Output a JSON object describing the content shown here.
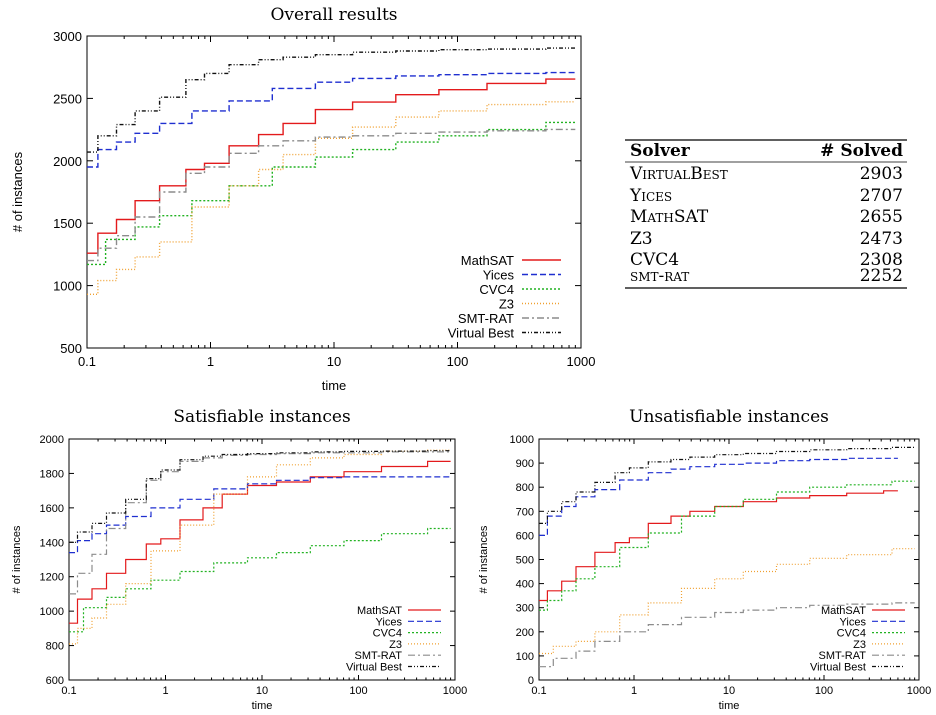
{
  "colors": {
    "MathSAT": "#e31a1c",
    "Yices": "#1f2fd0",
    "CVC4": "#22b222",
    "Z3": "#f0a030",
    "SMT-RAT": "#8c8c8c",
    "Virtual Best": "#111111"
  },
  "chart_data": [
    {
      "type": "line",
      "title": "Overall results",
      "xlabel": "time",
      "ylabel": "# of instances",
      "xscale": "log",
      "xlim": [
        0.1,
        1000
      ],
      "ylim": [
        500,
        3000
      ],
      "xticks": [
        "0.1",
        "1",
        "10",
        "100",
        "1000"
      ],
      "yticks": [
        500,
        1000,
        1500,
        2000,
        2500,
        3000
      ],
      "legend": "bottom-right",
      "series": [
        {
          "name": "MathSAT",
          "x": [
            0.1,
            0.15,
            0.2,
            0.3,
            0.5,
            0.8,
            1,
            2,
            3,
            5,
            10,
            20,
            50,
            100,
            300,
            900
          ],
          "y": [
            1260,
            1420,
            1530,
            1680,
            1800,
            1930,
            1980,
            2120,
            2210,
            2300,
            2410,
            2470,
            2530,
            2570,
            2620,
            2655
          ]
        },
        {
          "name": "Yices",
          "x": [
            0.1,
            0.15,
            0.2,
            0.3,
            0.5,
            1,
            2,
            5,
            10,
            20,
            50,
            100,
            300,
            900
          ],
          "y": [
            1950,
            2090,
            2150,
            2220,
            2300,
            2400,
            2480,
            2580,
            2630,
            2660,
            2680,
            2690,
            2700,
            2707
          ]
        },
        {
          "name": "CVC4",
          "x": [
            0.1,
            0.2,
            0.3,
            0.5,
            1,
            2,
            5,
            10,
            20,
            50,
            100,
            300,
            900
          ],
          "y": [
            1170,
            1370,
            1470,
            1560,
            1680,
            1800,
            1950,
            2030,
            2090,
            2150,
            2200,
            2250,
            2308
          ]
        },
        {
          "name": "Z3",
          "x": [
            0.1,
            0.15,
            0.2,
            0.3,
            0.5,
            1,
            2,
            3,
            5,
            10,
            20,
            50,
            100,
            300,
            900
          ],
          "y": [
            930,
            1040,
            1130,
            1230,
            1350,
            1630,
            1800,
            1930,
            2050,
            2180,
            2270,
            2350,
            2400,
            2450,
            2473
          ]
        },
        {
          "name": "SMT-RAT",
          "x": [
            0.1,
            0.15,
            0.2,
            0.3,
            0.5,
            0.8,
            1,
            2,
            3,
            5,
            10,
            20,
            50,
            100,
            300,
            900
          ],
          "y": [
            1200,
            1300,
            1400,
            1550,
            1750,
            1900,
            1950,
            2060,
            2120,
            2160,
            2190,
            2200,
            2220,
            2230,
            2240,
            2252
          ]
        },
        {
          "name": "Virtual Best",
          "x": [
            0.1,
            0.15,
            0.2,
            0.3,
            0.5,
            0.8,
            1,
            2,
            3,
            5,
            10,
            20,
            50,
            100,
            300,
            900
          ],
          "y": [
            2070,
            2200,
            2290,
            2400,
            2510,
            2650,
            2700,
            2770,
            2810,
            2830,
            2850,
            2870,
            2880,
            2890,
            2895,
            2903
          ]
        }
      ]
    },
    {
      "type": "line",
      "title": "Satisfiable instances",
      "xlabel": "time",
      "ylabel": "# of instances",
      "xscale": "log",
      "xlim": [
        0.1,
        1000
      ],
      "ylim": [
        600,
        2000
      ],
      "xticks": [
        "0.1",
        "1",
        "10",
        "100",
        "1000"
      ],
      "yticks": [
        600,
        800,
        1000,
        1200,
        1400,
        1600,
        1800,
        2000
      ],
      "legend": "bottom-right",
      "series": [
        {
          "name": "MathSAT",
          "x": [
            0.1,
            0.15,
            0.2,
            0.3,
            0.5,
            0.8,
            1,
            2,
            3,
            5,
            10,
            20,
            50,
            100,
            300,
            900
          ],
          "y": [
            930,
            1070,
            1130,
            1220,
            1300,
            1390,
            1420,
            1530,
            1600,
            1680,
            1730,
            1750,
            1780,
            1810,
            1840,
            1870
          ]
        },
        {
          "name": "Yices",
          "x": [
            0.1,
            0.15,
            0.2,
            0.3,
            0.5,
            1,
            2,
            5,
            10,
            20,
            50,
            100,
            300,
            900
          ],
          "y": [
            1340,
            1410,
            1450,
            1500,
            1550,
            1600,
            1650,
            1710,
            1740,
            1760,
            1775,
            1780,
            1780,
            1780
          ]
        },
        {
          "name": "CVC4",
          "x": [
            0.1,
            0.2,
            0.3,
            0.5,
            1,
            2,
            5,
            10,
            20,
            50,
            100,
            300,
            900
          ],
          "y": [
            880,
            1020,
            1080,
            1130,
            1180,
            1230,
            1280,
            1310,
            1340,
            1380,
            1410,
            1450,
            1480
          ]
        },
        {
          "name": "Z3",
          "x": [
            0.1,
            0.15,
            0.2,
            0.3,
            0.5,
            1,
            2,
            5,
            10,
            20,
            50,
            100,
            300,
            900
          ],
          "y": [
            810,
            900,
            960,
            1040,
            1160,
            1350,
            1500,
            1680,
            1780,
            1850,
            1890,
            1910,
            1930,
            1935
          ]
        },
        {
          "name": "SMT-RAT",
          "x": [
            0.1,
            0.15,
            0.2,
            0.3,
            0.5,
            0.8,
            1,
            2,
            3,
            5,
            10,
            20,
            50,
            100,
            300,
            900
          ],
          "y": [
            1100,
            1220,
            1330,
            1480,
            1630,
            1760,
            1810,
            1870,
            1890,
            1905,
            1910,
            1915,
            1920,
            1920,
            1925,
            1925
          ]
        },
        {
          "name": "Virtual Best",
          "x": [
            0.1,
            0.15,
            0.2,
            0.3,
            0.5,
            0.8,
            1,
            2,
            3,
            5,
            10,
            20,
            50,
            100,
            300,
            900
          ],
          "y": [
            1400,
            1460,
            1510,
            1570,
            1650,
            1770,
            1820,
            1880,
            1900,
            1910,
            1915,
            1920,
            1925,
            1928,
            1930,
            1932
          ]
        }
      ]
    },
    {
      "type": "line",
      "title": "Unsatisfiable instances",
      "xlabel": "time",
      "ylabel": "# of instances",
      "xscale": "log",
      "xlim": [
        0.1,
        1000
      ],
      "ylim": [
        0,
        1000
      ],
      "xticks": [
        "0.1",
        "1",
        "10",
        "100",
        "1000"
      ],
      "yticks": [
        0,
        100,
        200,
        300,
        400,
        500,
        600,
        700,
        800,
        900,
        1000
      ],
      "legend": "bottom-right",
      "series": [
        {
          "name": "MathSAT",
          "x": [
            0.1,
            0.15,
            0.2,
            0.3,
            0.5,
            0.8,
            1,
            2,
            3,
            5,
            10,
            20,
            50,
            100,
            300,
            600
          ],
          "y": [
            330,
            370,
            410,
            470,
            530,
            570,
            590,
            650,
            680,
            700,
            720,
            740,
            755,
            765,
            775,
            785
          ]
        },
        {
          "name": "Yices",
          "x": [
            0.1,
            0.15,
            0.2,
            0.3,
            0.5,
            1,
            2,
            3,
            5,
            10,
            20,
            50,
            100,
            300,
            600
          ],
          "y": [
            600,
            680,
            720,
            760,
            790,
            830,
            860,
            875,
            885,
            895,
            900,
            910,
            915,
            920,
            920
          ]
        },
        {
          "name": "CVC4",
          "x": [
            0.1,
            0.15,
            0.2,
            0.3,
            0.5,
            1,
            2,
            5,
            10,
            20,
            50,
            100,
            300,
            900
          ],
          "y": [
            290,
            330,
            370,
            420,
            470,
            550,
            610,
            680,
            720,
            750,
            780,
            800,
            810,
            825
          ]
        },
        {
          "name": "Z3",
          "x": [
            0.1,
            0.2,
            0.3,
            0.5,
            1,
            2,
            5,
            10,
            20,
            50,
            100,
            300,
            900
          ],
          "y": [
            110,
            140,
            160,
            200,
            270,
            320,
            380,
            420,
            450,
            480,
            505,
            520,
            545
          ]
        },
        {
          "name": "SMT-RAT",
          "x": [
            0.1,
            0.2,
            0.3,
            0.5,
            1,
            2,
            5,
            10,
            20,
            50,
            100,
            300,
            900
          ],
          "y": [
            55,
            90,
            120,
            160,
            200,
            230,
            260,
            280,
            290,
            300,
            310,
            315,
            320
          ]
        },
        {
          "name": "Virtual Best",
          "x": [
            0.1,
            0.15,
            0.2,
            0.3,
            0.5,
            0.8,
            1,
            2,
            3,
            5,
            10,
            20,
            50,
            100,
            300,
            900
          ],
          "y": [
            650,
            700,
            740,
            780,
            820,
            860,
            880,
            905,
            915,
            925,
            935,
            940,
            948,
            955,
            960,
            965
          ]
        }
      ]
    }
  ],
  "table": {
    "headers": [
      "Solver",
      "# Solved"
    ],
    "rows": [
      {
        "solver": "VirtualBest",
        "solved": "2903"
      },
      {
        "solver": "Yices",
        "solved": "2707"
      },
      {
        "solver": "MathSAT",
        "solved": "2655"
      },
      {
        "solver": "Z3",
        "solved": "2473"
      },
      {
        "solver": "CVC4",
        "solved": "2308"
      },
      {
        "solver": "smt-rat",
        "solved": "2252"
      }
    ]
  }
}
